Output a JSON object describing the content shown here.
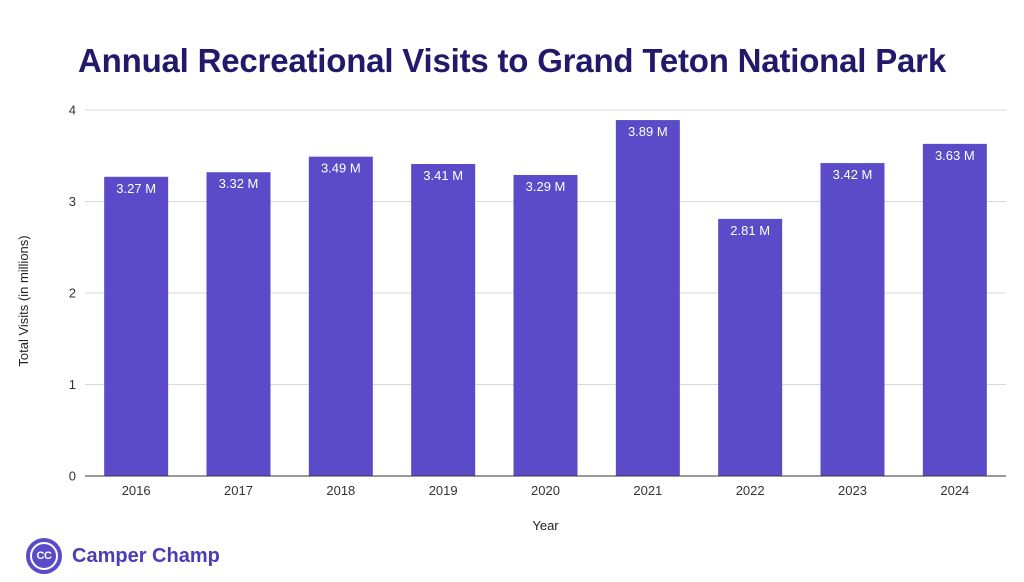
{
  "chart_data": {
    "type": "bar",
    "title": "Annual Recreational Visits to Grand Teton National Park",
    "xlabel": "Year",
    "ylabel": "Total Visits (in millions)",
    "categories": [
      "2016",
      "2017",
      "2018",
      "2019",
      "2020",
      "2021",
      "2022",
      "2023",
      "2024"
    ],
    "values": [
      3.27,
      3.32,
      3.49,
      3.41,
      3.29,
      3.89,
      2.81,
      3.42,
      3.63
    ],
    "data_labels": [
      "3.27 M",
      "3.32 M",
      "3.49 M",
      "3.41 M",
      "3.29 M",
      "3.89 M",
      "2.81 M",
      "3.42 M",
      "3.63 M"
    ],
    "ylim": [
      0,
      4
    ],
    "yticks": [
      "0",
      "1",
      "2",
      "3",
      "4"
    ],
    "grid": true,
    "legend": "none",
    "bar_color": "#5b4bc8"
  },
  "brand": {
    "logo_text": "CC",
    "name": "Camper Champ",
    "color": "#4b3cb8"
  }
}
